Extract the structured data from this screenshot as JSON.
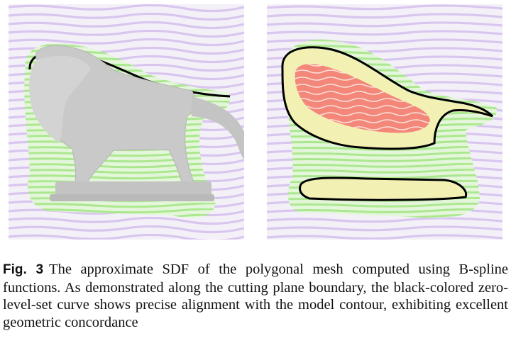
{
  "figure": {
    "label": "Fig. 3",
    "caption": "The approximate SDF of the polygonal mesh computed using B-spline functions. As demonstrated along the cutting plane boundary, the black-colored zero-level-set curve shows precise alignment with the model contour, exhibiting excellent geometric concordance"
  },
  "colors": {
    "background_band_light": "#f1ecf7",
    "background_band_purple": "#d6c2ee",
    "near_band_green": "#b7ee9a",
    "inner_yellow": "#f3f0b4",
    "inner_red": "#f3877a",
    "zero_level_curve": "#000000",
    "mesh_gray": "#c9c9c9"
  }
}
